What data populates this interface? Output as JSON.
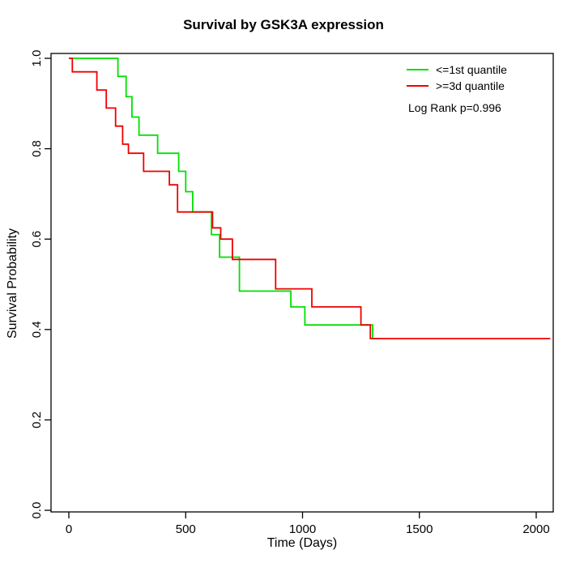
{
  "chart_data": {
    "type": "line",
    "subtype": "kaplan-meier-step",
    "title": "Survival by GSK3A expression",
    "xlabel": "Time (Days)",
    "ylabel": "Survival Probability",
    "annotation": "Log Rank p=0.996",
    "xlim": [
      0,
      2100
    ],
    "ylim": [
      0.0,
      1.0
    ],
    "xticks": [
      0,
      500,
      1000,
      1500,
      2000
    ],
    "xticklabels": [
      "0",
      "500",
      "1000",
      "1500",
      "2000"
    ],
    "yticks": [
      0.0,
      0.2,
      0.4,
      0.6,
      0.8,
      1.0
    ],
    "yticklabels": [
      "0.0",
      "0.2",
      "0.4",
      "0.6",
      "0.8",
      "1.0"
    ],
    "grid": false,
    "legend_position": "top-right",
    "series": [
      {
        "name": "<=1st quantile",
        "color": "#00E000",
        "end": 1330,
        "points": [
          [
            0,
            1.0
          ],
          [
            210,
            0.96
          ],
          [
            245,
            0.915
          ],
          [
            270,
            0.87
          ],
          [
            300,
            0.83
          ],
          [
            380,
            0.79
          ],
          [
            470,
            0.75
          ],
          [
            500,
            0.705
          ],
          [
            530,
            0.66
          ],
          [
            610,
            0.61
          ],
          [
            645,
            0.56
          ],
          [
            730,
            0.485
          ],
          [
            950,
            0.45
          ],
          [
            1010,
            0.41
          ],
          [
            1300,
            0.38
          ]
        ]
      },
      {
        "name": ">=3d quantile",
        "color": "#EF0000",
        "end": 2060,
        "points": [
          [
            0,
            1.0
          ],
          [
            15,
            0.97
          ],
          [
            120,
            0.93
          ],
          [
            160,
            0.89
          ],
          [
            200,
            0.85
          ],
          [
            230,
            0.81
          ],
          [
            255,
            0.79
          ],
          [
            320,
            0.75
          ],
          [
            430,
            0.72
          ],
          [
            465,
            0.66
          ],
          [
            615,
            0.625
          ],
          [
            650,
            0.6
          ],
          [
            700,
            0.555
          ],
          [
            885,
            0.49
          ],
          [
            1040,
            0.45
          ],
          [
            1250,
            0.41
          ],
          [
            1290,
            0.38
          ]
        ]
      }
    ]
  }
}
